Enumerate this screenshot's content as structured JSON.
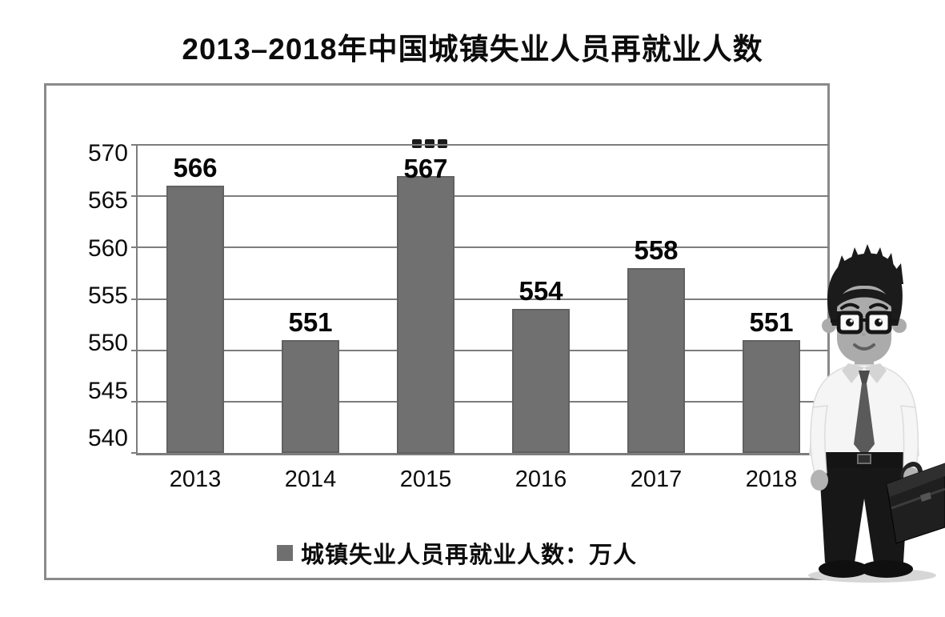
{
  "title": "2013–2018年中国城镇失业人员再就业人数",
  "chart_data": {
    "type": "bar",
    "title": "2013–2018年中国城镇失业人员再就业人数",
    "categories": [
      "2013",
      "2014",
      "2015",
      "2016",
      "2017",
      "2018"
    ],
    "values": [
      566,
      551,
      567,
      554,
      558,
      551
    ],
    "series_name": "城镇失业人员再就业人数：万人",
    "unit": "万人",
    "xlabel": "",
    "ylabel": "",
    "ylim": [
      540,
      570
    ],
    "yticks": [
      570,
      565,
      560,
      555,
      550,
      545,
      540
    ],
    "grid": true,
    "legend_position": "bottom"
  },
  "legend": {
    "label": "城镇失业人员再就业人数：万人"
  },
  "decor": {
    "illustration": "businessman-with-briefcase"
  },
  "colors": {
    "bar": "#707070",
    "bar_border": "#616161",
    "grid": "#7d7d7d",
    "box_border": "#8a8a8a",
    "legend_marker": "#6f6f6f",
    "text": "#0c0c0c"
  }
}
